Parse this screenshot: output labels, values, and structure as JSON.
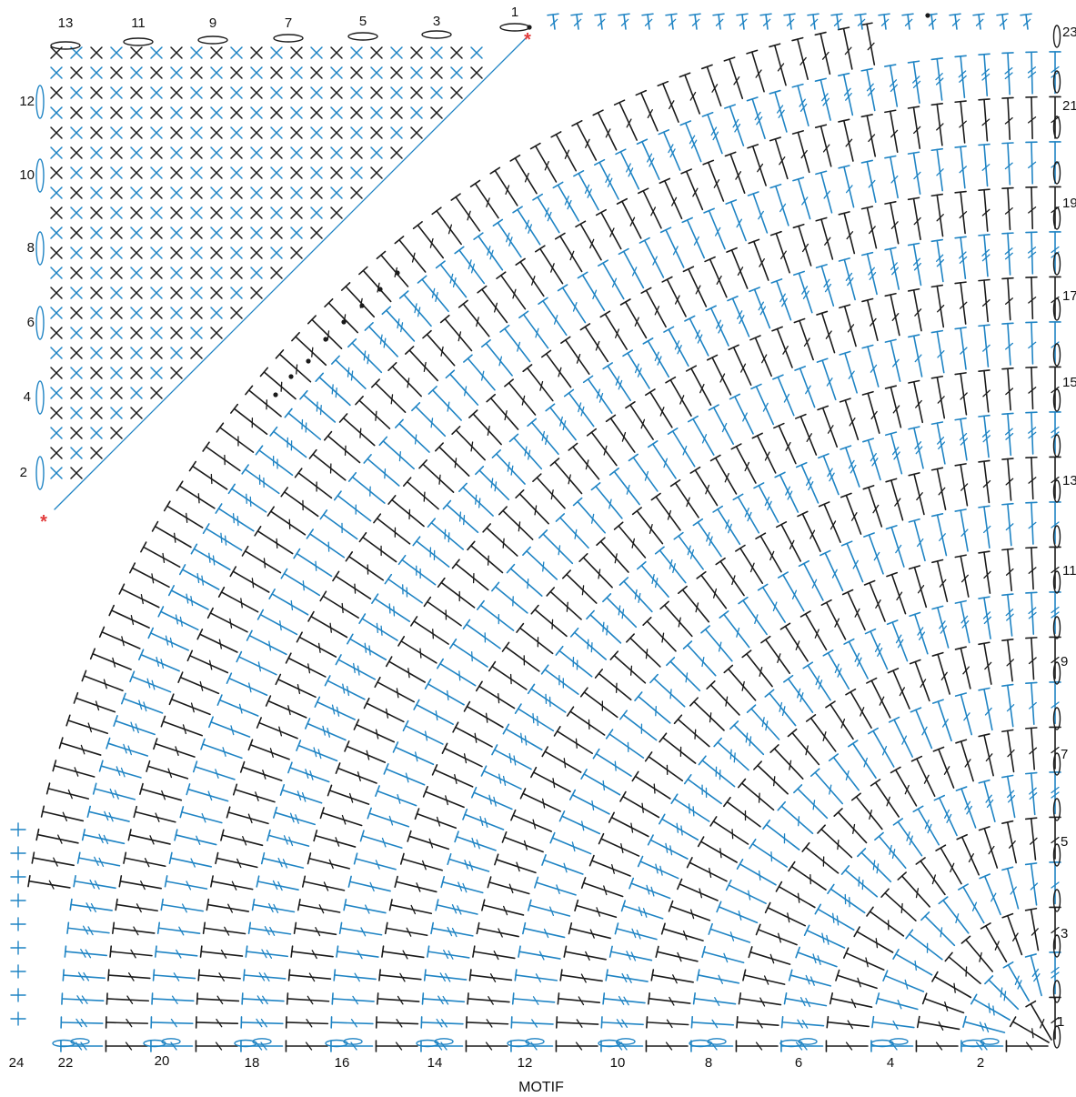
{
  "caption": "MOTIF",
  "colors": {
    "blue": "#1f84c4",
    "black": "#1a1a1a",
    "red": "#e23c3c",
    "paper": "#ffffff"
  },
  "labels": {
    "top": [
      "13",
      "11",
      "9",
      "7",
      "5",
      "3",
      "1"
    ],
    "left": [
      "12",
      "10",
      "8",
      "6",
      "4",
      "2"
    ],
    "right": [
      "23",
      "21",
      "19",
      "17",
      "15",
      "13",
      "11",
      "9",
      "7",
      "5",
      "3",
      "1"
    ],
    "bottom": [
      "24",
      "22",
      "20",
      "18",
      "16",
      "14",
      "12",
      "10",
      "8",
      "6",
      "4",
      "2"
    ]
  },
  "markers": {
    "start_symbol": "*"
  }
}
